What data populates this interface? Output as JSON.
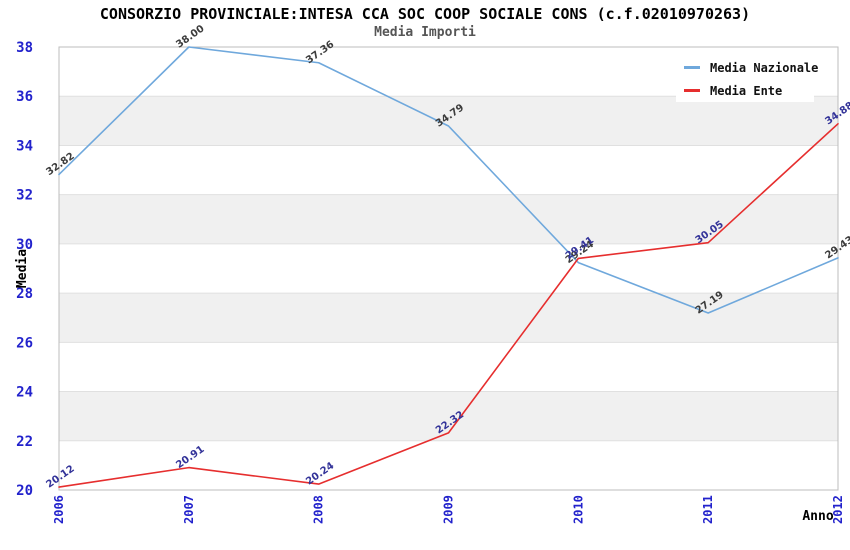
{
  "header": {
    "title": "CONSORZIO PROVINCIALE:INTESA CCA SOC COOP SOCIALE CONS (c.f.02010970263)",
    "subtitle": "Media Importi"
  },
  "chart_data": {
    "type": "line",
    "title": "CONSORZIO PROVINCIALE:INTESA CCA SOC COOP SOCIALE CONS (c.f.02010970263)",
    "subtitle": "Media Importi",
    "xlabel": "Anno",
    "ylabel": "Media",
    "x": [
      2006,
      2007,
      2008,
      2009,
      2010,
      2011,
      2012
    ],
    "ylim": [
      20,
      38
    ],
    "ytick_step": 2,
    "grid": "horizontal gridlines with alternating gray bands",
    "legend_position": "top-right",
    "series": [
      {
        "name": "Media Nazionale",
        "color": "#6fa8dc",
        "label_color": "#3c3c3c",
        "values": [
          32.82,
          38.0,
          37.36,
          34.79,
          29.24,
          27.19,
          29.43
        ]
      },
      {
        "name": "Media Ente",
        "color": "#e62e2e",
        "label_color": "#333399",
        "values": [
          20.12,
          20.91,
          20.24,
          22.32,
          29.41,
          30.05,
          34.88
        ]
      }
    ]
  },
  "colors": {
    "tick_label": "#2222cc",
    "band": "#f0f0f0",
    "grid": "#e0e0e0",
    "frame": "#bdbdbd",
    "background": "#ffffff"
  }
}
